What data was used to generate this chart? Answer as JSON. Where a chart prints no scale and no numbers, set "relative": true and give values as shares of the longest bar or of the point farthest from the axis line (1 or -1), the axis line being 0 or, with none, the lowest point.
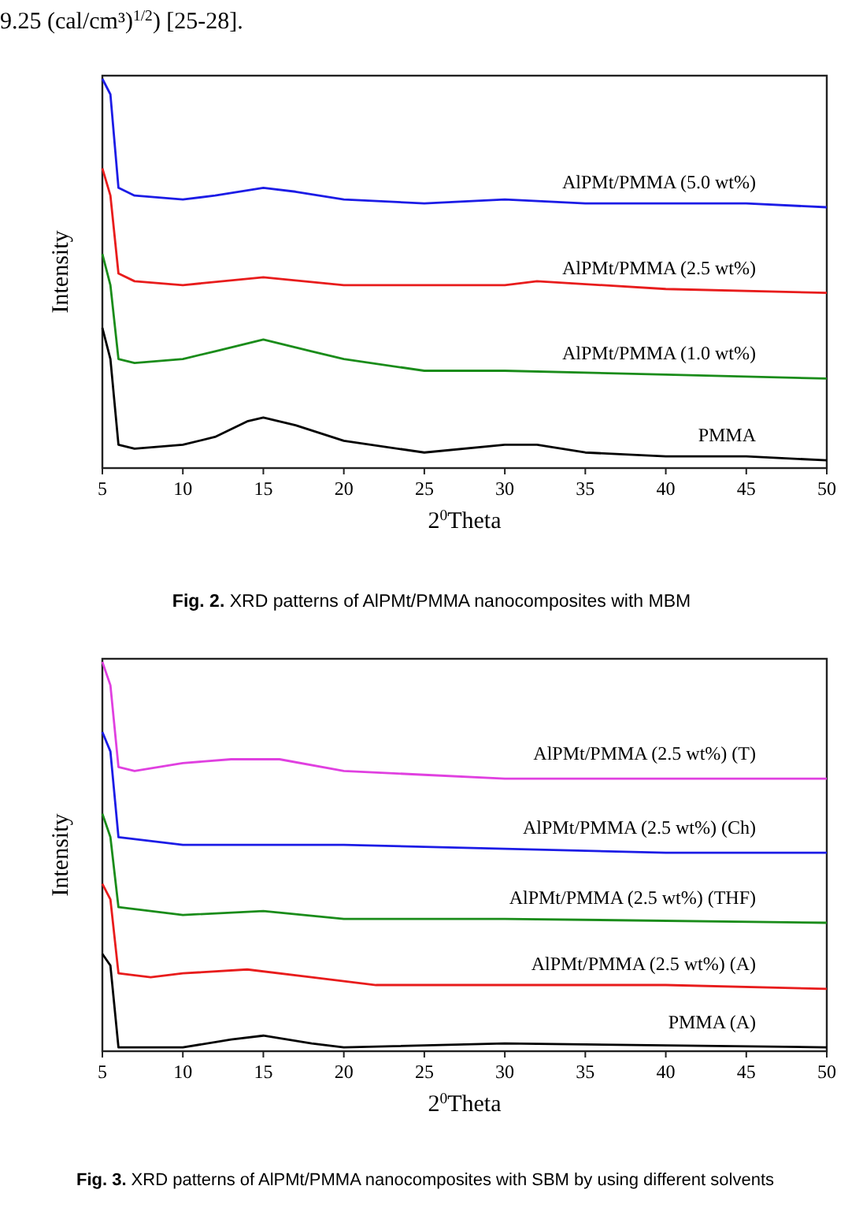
{
  "chart_data": [
    {
      "type": "line",
      "relative": true,
      "xlabel": "2$^{0}$Theta",
      "ylabel": "Intensity",
      "xlim": [
        5,
        50
      ],
      "xticks": [
        5,
        10,
        15,
        20,
        25,
        30,
        35,
        40,
        45,
        50
      ],
      "tick_labels": "x",
      "legend": false,
      "grid": false,
      "marker": "none",
      "line_style": "solid",
      "annotations": [
        "9.25 (cal/cm³)$^{1/2}$) [25-28].",
        "Fig. 2. XRD patterns of AlPMt/PMMA nanocomposites with MBM"
      ],
      "series": [
        {
          "name": "AlPMt/PMMA (5.0 wt%)",
          "color": "#1c1ce6",
          "x": [
            5,
            5.5,
            6,
            7,
            10,
            12,
            15,
            17,
            20,
            25,
            30,
            35,
            40,
            45,
            50
          ],
          "values": [
            1.0,
            0.96,
            0.72,
            0.7,
            0.69,
            0.7,
            0.72,
            0.71,
            0.69,
            0.68,
            0.69,
            0.68,
            0.68,
            0.68,
            0.67
          ]
        },
        {
          "name": "AlPMt/PMMA (2.5 wt%)",
          "color": "#e81c1c",
          "x": [
            5,
            5.5,
            6,
            7,
            10,
            15,
            20,
            25,
            30,
            32,
            40,
            50
          ],
          "values": [
            0.77,
            0.7,
            0.5,
            0.48,
            0.47,
            0.49,
            0.47,
            0.47,
            0.47,
            0.48,
            0.46,
            0.45
          ]
        },
        {
          "name": "AlPMt/PMMA (1.0 wt%)",
          "color": "#1a8c1a",
          "x": [
            5,
            5.5,
            6,
            7,
            10,
            12,
            15,
            18,
            20,
            25,
            30,
            40,
            50
          ],
          "values": [
            0.55,
            0.47,
            0.28,
            0.27,
            0.28,
            0.3,
            0.33,
            0.3,
            0.28,
            0.25,
            0.25,
            0.24,
            0.23
          ]
        },
        {
          "name": "PMMA",
          "color": "#000000",
          "x": [
            5,
            5.5,
            6,
            7,
            10,
            12,
            14,
            15,
            17,
            20,
            25,
            30,
            32,
            35,
            40,
            45,
            50
          ],
          "values": [
            0.36,
            0.28,
            0.06,
            0.05,
            0.06,
            0.08,
            0.12,
            0.13,
            0.11,
            0.07,
            0.04,
            0.06,
            0.06,
            0.04,
            0.03,
            0.03,
            0.02
          ]
        }
      ]
    },
    {
      "type": "line",
      "relative": true,
      "xlabel": "2$^{0}$Theta",
      "ylabel": "Intensity",
      "xlim": [
        5,
        50
      ],
      "xticks": [
        5,
        10,
        15,
        20,
        25,
        30,
        35,
        40,
        45,
        50
      ],
      "tick_labels": "x",
      "legend": false,
      "grid": false,
      "marker": "none",
      "line_style": "solid",
      "annotations": [
        "Fig. 3. XRD patterns of AlPMt/PMMA nanocomposites with SBM by using different solvents"
      ],
      "series": [
        {
          "name": "AlPMt/PMMA (2.5 wt%) (T)",
          "color": "#e040e0",
          "x": [
            5,
            5.5,
            6,
            7,
            10,
            13,
            16,
            20,
            25,
            30,
            40,
            50
          ],
          "values": [
            1.0,
            0.94,
            0.73,
            0.72,
            0.74,
            0.75,
            0.75,
            0.72,
            0.71,
            0.7,
            0.7,
            0.7
          ]
        },
        {
          "name": "AlPMt/PMMA (2.5 wt%) (Ch)",
          "color": "#1c1ce6",
          "x": [
            5,
            5.5,
            6,
            10,
            20,
            30,
            40,
            50
          ],
          "values": [
            0.82,
            0.77,
            0.55,
            0.53,
            0.53,
            0.52,
            0.51,
            0.51
          ]
        },
        {
          "name": "AlPMt/PMMA (2.5 wt%) (THF)",
          "color": "#1a8c1a",
          "x": [
            5,
            5.5,
            6,
            10,
            15,
            20,
            30,
            50
          ],
          "values": [
            0.61,
            0.55,
            0.37,
            0.35,
            0.36,
            0.34,
            0.34,
            0.33
          ]
        },
        {
          "name": "AlPMt/PMMA (2.5 wt%) (A)",
          "color": "#e81c1c",
          "x": [
            5,
            5.5,
            6,
            8,
            10,
            14,
            18,
            22,
            30,
            40,
            50
          ],
          "values": [
            0.43,
            0.39,
            0.2,
            0.19,
            0.2,
            0.21,
            0.19,
            0.17,
            0.17,
            0.17,
            0.16
          ]
        },
        {
          "name": "PMMA (A)",
          "color": "#000000",
          "x": [
            5,
            5.5,
            6,
            10,
            13,
            15,
            18,
            20,
            30,
            50
          ],
          "values": [
            0.25,
            0.22,
            0.01,
            0.01,
            0.03,
            0.04,
            0.02,
            0.01,
            0.02,
            0.01
          ]
        }
      ]
    }
  ]
}
